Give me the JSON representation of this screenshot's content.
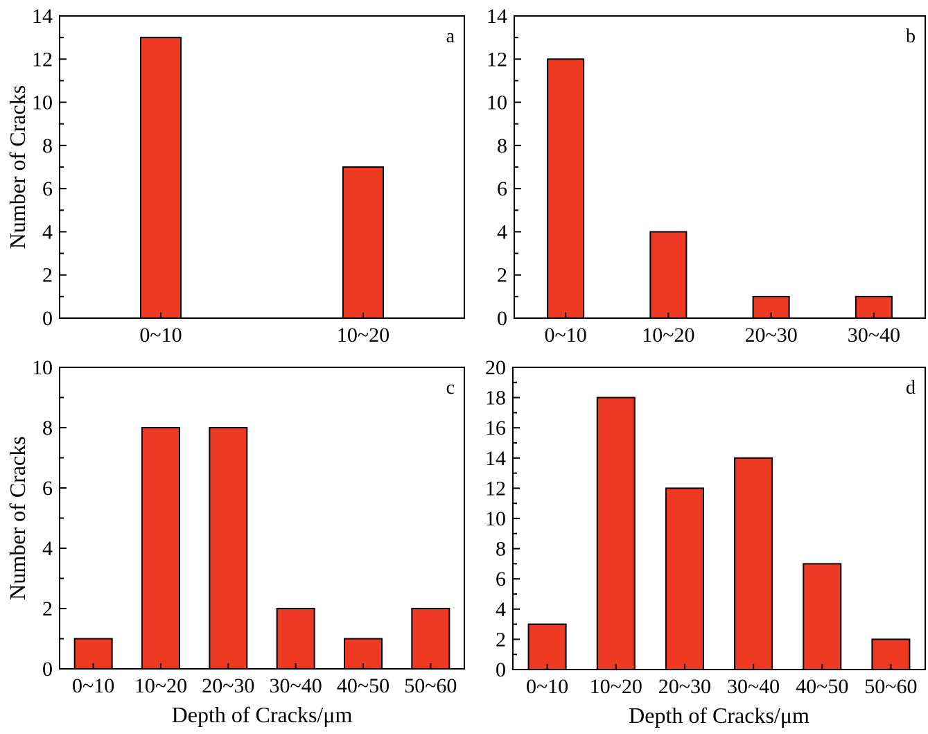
{
  "figure": {
    "ylabel": "Number of Cracks",
    "xlabel": "Depth of Cracks/μm",
    "bar_color": "#ee3a22"
  },
  "chart_data": [
    {
      "type": "bar",
      "panel": "a",
      "categories": [
        "0~10",
        "10~20"
      ],
      "values": [
        13,
        7
      ],
      "ylim": [
        0,
        14
      ],
      "yticks": [
        0,
        2,
        4,
        6,
        8,
        10,
        12,
        14
      ],
      "ylabel": "Number of Cracks",
      "xlabel": ""
    },
    {
      "type": "bar",
      "panel": "b",
      "categories": [
        "0~10",
        "10~20",
        "20~30",
        "30~40"
      ],
      "values": [
        12,
        4,
        1,
        1
      ],
      "ylim": [
        0,
        14
      ],
      "yticks": [
        0,
        2,
        4,
        6,
        8,
        10,
        12,
        14
      ],
      "ylabel": "",
      "xlabel": ""
    },
    {
      "type": "bar",
      "panel": "c",
      "categories": [
        "0~10",
        "10~20",
        "20~30",
        "30~40",
        "40~50",
        "50~60"
      ],
      "values": [
        1,
        8,
        8,
        2,
        1,
        2
      ],
      "ylim": [
        0,
        10
      ],
      "yticks": [
        0,
        2,
        4,
        6,
        8,
        10
      ],
      "ylabel": "Number of Cracks",
      "xlabel": "Depth of Cracks/μm"
    },
    {
      "type": "bar",
      "panel": "d",
      "categories": [
        "0~10",
        "10~20",
        "20~30",
        "30~40",
        "40~50",
        "50~60"
      ],
      "values": [
        3,
        18,
        12,
        14,
        7,
        2
      ],
      "ylim": [
        0,
        20
      ],
      "yticks": [
        0,
        2,
        4,
        6,
        8,
        10,
        12,
        14,
        16,
        18,
        20
      ],
      "ylabel": "",
      "xlabel": "Depth of Cracks/μm"
    }
  ]
}
